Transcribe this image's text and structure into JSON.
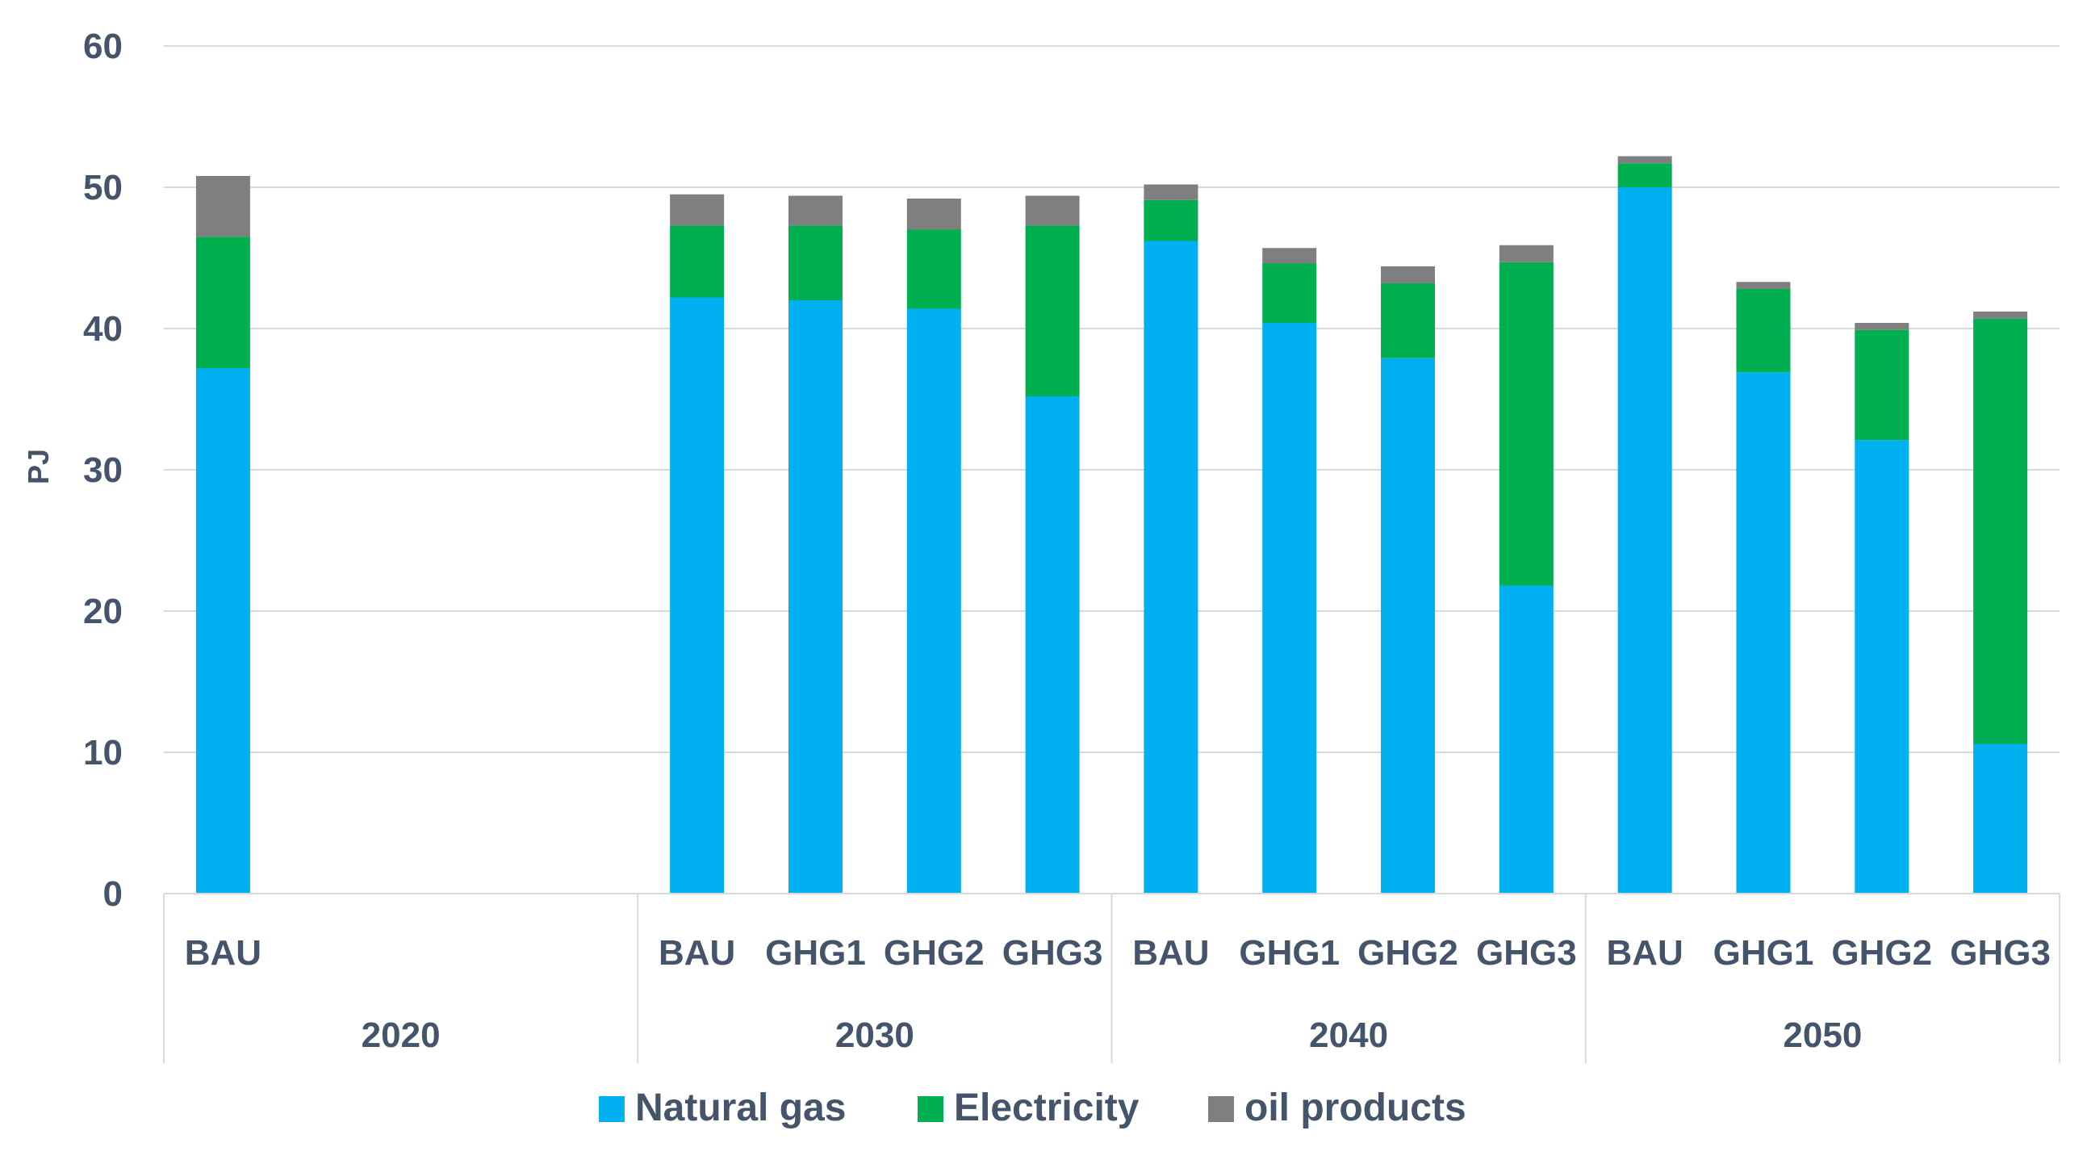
{
  "chart_data": {
    "type": "bar",
    "stacked": true,
    "title": "",
    "xlabel": "",
    "ylabel": "PJ",
    "ylim": [
      0,
      60
    ],
    "yticks": [
      "0",
      "10",
      "20",
      "30",
      "40",
      "50",
      "60"
    ],
    "grid": true,
    "legend_position": "bottom",
    "groups": [
      {
        "label": "2020",
        "categories": [
          "BAU",
          "",
          "",
          ""
        ]
      },
      {
        "label": "2030",
        "categories": [
          "BAU",
          "GHG1",
          "GHG2",
          "GHG3"
        ]
      },
      {
        "label": "2040",
        "categories": [
          "BAU",
          "GHG1",
          "GHG2",
          "GHG3"
        ]
      },
      {
        "label": "2050",
        "categories": [
          "BAU",
          "GHG1",
          "GHG2",
          "GHG3"
        ]
      }
    ],
    "series": [
      {
        "name": "Natural gas",
        "color": "#00b0f0",
        "values": [
          37.2,
          null,
          null,
          null,
          42.2,
          42.0,
          41.4,
          35.2,
          46.2,
          40.4,
          37.9,
          21.8,
          50.0,
          36.9,
          32.1,
          10.6
        ]
      },
      {
        "name": "Electricity",
        "color": "#00b050",
        "values": [
          9.3,
          null,
          null,
          null,
          5.1,
          5.3,
          5.6,
          12.1,
          2.9,
          4.2,
          5.3,
          22.9,
          1.7,
          5.9,
          7.8,
          30.1
        ]
      },
      {
        "name": "oil products",
        "color": "#7f7f7f",
        "values": [
          4.3,
          null,
          null,
          null,
          2.2,
          2.1,
          2.2,
          2.1,
          1.1,
          1.1,
          1.2,
          1.2,
          0.5,
          0.5,
          0.5,
          0.5
        ]
      }
    ]
  }
}
